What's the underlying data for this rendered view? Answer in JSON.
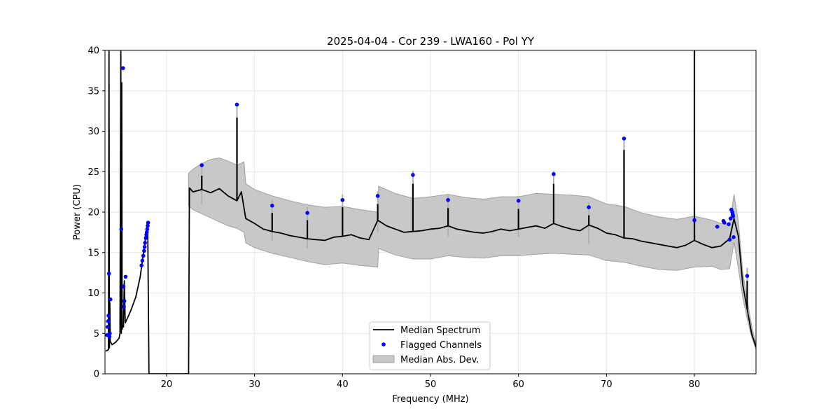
{
  "chart_data": {
    "type": "line",
    "title": "2025-04-04 - Cor 239 - LWA160 - Pol YY",
    "xlabel": "Frequency (MHz)",
    "ylabel": "Power (CPU)",
    "xlim": [
      13.0,
      87.0
    ],
    "ylim": [
      0,
      40
    ],
    "xticks": [
      20,
      30,
      40,
      50,
      60,
      70,
      80
    ],
    "yticks": [
      0,
      5,
      10,
      15,
      20,
      25,
      30,
      35,
      40
    ],
    "grid": true,
    "legend_position": "lower center",
    "legend": [
      "Median Spectrum",
      "Flagged Channels",
      "Median Abs. Dev."
    ],
    "colors": {
      "median": "#000000",
      "flagged": "#0000ff",
      "band": "#c8c8c8",
      "band_edge": "#a0a0a0"
    },
    "median_spectrum": {
      "x": [
        13.1,
        13.4,
        13.45,
        13.5,
        13.55,
        13.6,
        13.8,
        14.2,
        14.6,
        14.7,
        14.8,
        14.85,
        14.9,
        14.95,
        15.0,
        15.1,
        15.2,
        15.3,
        15.6,
        16.0,
        16.5,
        17.0,
        17.5,
        17.8,
        17.85,
        18.0,
        22.5,
        22.6,
        23.0,
        24.0,
        25.0,
        26.0,
        27.0,
        28.0,
        28.5,
        29.0,
        30.0,
        31.0,
        32.0,
        33.0,
        34.0,
        35.0,
        36.0,
        37.0,
        38.0,
        39.0,
        40.0,
        41.0,
        42.0,
        43.0,
        44.0,
        45.0,
        46.0,
        47.0,
        48.0,
        49.0,
        50.0,
        51.0,
        52.0,
        53.0,
        54.0,
        55.0,
        56.0,
        57.0,
        58.0,
        59.0,
        60.0,
        61.0,
        62.0,
        63.0,
        64.0,
        65.0,
        66.0,
        67.0,
        68.0,
        69.0,
        70.0,
        71.0,
        72.0,
        73.0,
        74.0,
        75.0,
        76.0,
        77.0,
        78.0,
        79.0,
        80.0,
        81.0,
        82.0,
        83.0,
        84.0,
        84.5,
        85.0,
        85.5,
        86.0,
        86.5,
        87.0
      ],
      "y": [
        2.8,
        3.0,
        40.0,
        3.2,
        8.8,
        4.0,
        3.6,
        3.9,
        4.4,
        5.0,
        40.0,
        5.0,
        36.0,
        5.5,
        6.0,
        5.8,
        11.5,
        6.3,
        7.0,
        8.0,
        9.5,
        12.0,
        16.0,
        18.6,
        18.7,
        0.0,
        0.0,
        23.0,
        22.5,
        22.8,
        22.4,
        22.9,
        22.0,
        21.4,
        22.5,
        19.2,
        18.6,
        17.9,
        17.6,
        17.4,
        17.1,
        16.9,
        16.7,
        16.6,
        16.5,
        16.9,
        17.0,
        17.2,
        16.8,
        16.6,
        19.0,
        18.3,
        17.9,
        17.5,
        17.6,
        17.7,
        17.9,
        18.0,
        18.3,
        17.9,
        17.7,
        17.5,
        17.4,
        17.6,
        17.9,
        17.7,
        17.9,
        18.1,
        18.3,
        18.0,
        18.6,
        18.2,
        17.9,
        17.7,
        18.4,
        18.0,
        17.4,
        17.2,
        16.8,
        16.7,
        16.4,
        16.2,
        16.0,
        15.8,
        15.6,
        15.9,
        16.5,
        16.0,
        15.6,
        15.8,
        16.7,
        19.2,
        17.0,
        11.0,
        8.0,
        5.0,
        3.3
      ],
      "spikes": [
        {
          "x": 24.0,
          "y": 24.5
        },
        {
          "x": 28.0,
          "y": 31.7
        },
        {
          "x": 32.0,
          "y": 19.9
        },
        {
          "x": 36.0,
          "y": 19.0
        },
        {
          "x": 40.0,
          "y": 20.6
        },
        {
          "x": 44.0,
          "y": 21.0
        },
        {
          "x": 48.0,
          "y": 23.5
        },
        {
          "x": 52.0,
          "y": 20.5
        },
        {
          "x": 60.0,
          "y": 20.4
        },
        {
          "x": 64.0,
          "y": 23.5
        },
        {
          "x": 68.0,
          "y": 19.6
        },
        {
          "x": 72.0,
          "y": 27.7
        },
        {
          "x": 80.0,
          "y": 40.0
        },
        {
          "x": 86.0,
          "y": 11.5
        }
      ]
    },
    "mad_band": {
      "x": [
        22.5,
        23.0,
        24.0,
        25.0,
        26.0,
        27.0,
        28.0,
        28.8,
        29.0,
        30.0,
        32.0,
        34.0,
        36.0,
        38.0,
        40.0,
        42.0,
        44.0,
        44.1,
        46.0,
        48.0,
        50.0,
        52.0,
        54.0,
        56.0,
        58.0,
        60.0,
        62.0,
        64.0,
        66.0,
        68.0,
        70.0,
        72.0,
        74.0,
        76.0,
        78.0,
        80.0,
        82.0,
        83.0,
        84.0,
        84.5,
        85.0,
        85.5,
        86.0,
        86.5,
        87.0
      ],
      "upper": [
        24.8,
        25.3,
        26.0,
        26.5,
        26.7,
        26.3,
        25.8,
        26.2,
        23.5,
        22.8,
        22.0,
        21.4,
        20.9,
        20.6,
        20.7,
        20.3,
        20.0,
        23.2,
        22.3,
        21.7,
        21.9,
        22.2,
        21.8,
        21.6,
        21.9,
        21.9,
        22.3,
        22.2,
        22.1,
        21.9,
        21.0,
        20.7,
        19.9,
        19.4,
        19.1,
        19.5,
        19.0,
        18.6,
        18.5,
        22.2,
        18.8,
        12.6,
        9.2,
        6.0,
        3.6
      ],
      "lower": [
        20.8,
        20.3,
        19.8,
        19.3,
        18.8,
        18.3,
        18.0,
        17.5,
        16.2,
        15.6,
        14.9,
        14.4,
        13.9,
        13.5,
        13.7,
        13.4,
        13.2,
        15.5,
        14.7,
        14.2,
        14.2,
        14.6,
        14.4,
        14.3,
        14.6,
        14.6,
        14.8,
        14.9,
        14.8,
        14.7,
        14.0,
        13.8,
        13.3,
        12.9,
        12.8,
        13.2,
        13.3,
        12.9,
        13.0,
        16.3,
        13.0,
        9.4,
        6.8,
        4.6,
        3.0
      ]
    },
    "flagged_channels": {
      "x": [
        13.25,
        13.3,
        13.35,
        13.4,
        13.45,
        13.5,
        13.55,
        13.62,
        14.85,
        15.05,
        15.1,
        15.15,
        15.2,
        15.35,
        17.15,
        17.25,
        17.35,
        17.45,
        17.5,
        17.55,
        17.65,
        17.7,
        17.75,
        17.8,
        17.85,
        17.9,
        24.0,
        28.0,
        32.0,
        36.0,
        40.0,
        44.0,
        48.0,
        52.0,
        60.0,
        64.0,
        68.0,
        72.0,
        80.0,
        82.6,
        83.3,
        83.4,
        83.9,
        84.0,
        84.1,
        84.2,
        84.3,
        84.35,
        84.4,
        84.45,
        86.0
      ],
      "y": [
        4.8,
        5.8,
        6.5,
        7.2,
        12.4,
        4.6,
        5.0,
        9.2,
        17.9,
        37.8,
        10.8,
        8.3,
        9.0,
        12.0,
        13.4,
        14.0,
        14.6,
        15.2,
        15.7,
        16.2,
        16.8,
        17.2,
        17.5,
        17.9,
        18.3,
        18.7,
        25.8,
        33.3,
        20.8,
        19.9,
        21.5,
        22.0,
        24.6,
        21.5,
        21.4,
        24.7,
        20.6,
        29.1,
        19.0,
        18.2,
        18.9,
        18.7,
        18.5,
        16.6,
        19.2,
        20.3,
        20.0,
        19.7,
        19.5,
        16.9,
        12.1
      ]
    }
  }
}
